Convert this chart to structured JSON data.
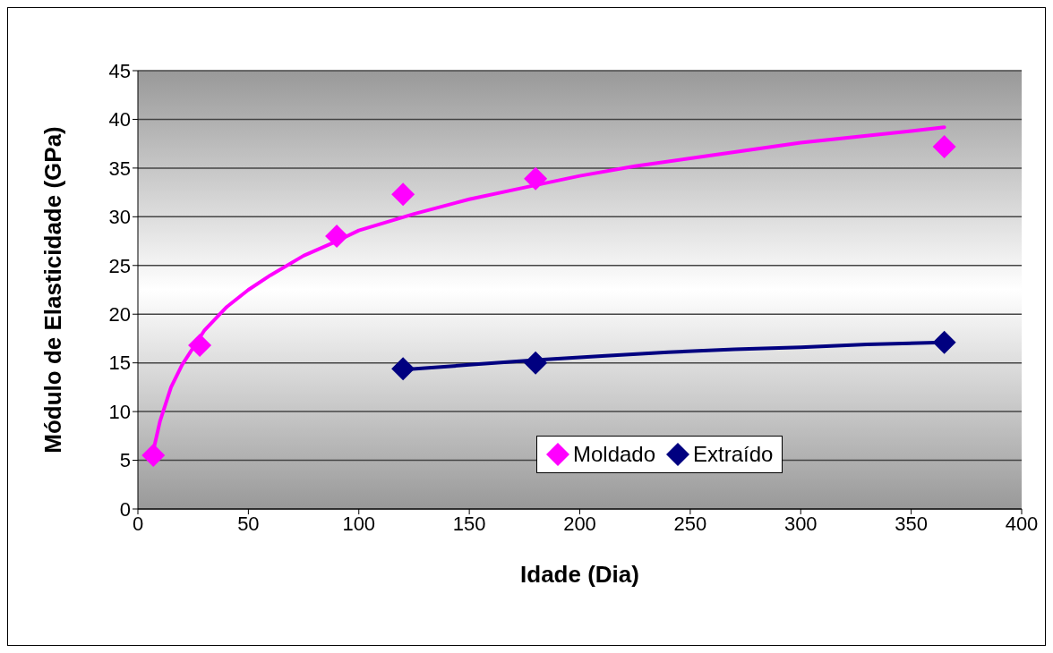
{
  "chart_data": {
    "type": "scatter",
    "xlabel": "Idade (Dia)",
    "ylabel": "Módulo de Elasticidade (GPa)",
    "xlim": [
      0,
      400
    ],
    "xticks": [
      0,
      50,
      100,
      150,
      200,
      250,
      300,
      350,
      400
    ],
    "ylim": [
      0,
      45
    ],
    "yticks": [
      0,
      5,
      10,
      15,
      20,
      25,
      30,
      35,
      40,
      45
    ],
    "grid": "y",
    "legend": "bottom right",
    "marker": "diamond",
    "series": [
      {
        "name": "Moldado",
        "color": "#ff00ff",
        "x": [
          7,
          28,
          90,
          120,
          180,
          365
        ],
        "values": [
          5.5,
          16.8,
          28,
          32.3,
          33.9,
          37.2
        ]
      },
      {
        "name": "Extraído",
        "color": "#000080",
        "x": [
          120,
          180,
          365
        ],
        "values": [
          14.4,
          15,
          17.1
        ]
      },
      {
        "type": "line",
        "color": "#ff00ff",
        "marker": "none",
        "x": [
          7,
          10,
          15,
          20,
          30,
          40,
          50,
          60,
          75,
          90,
          100,
          125,
          150,
          175,
          200,
          225,
          250,
          275,
          300,
          325,
          350,
          365
        ],
        "values": [
          6,
          9,
          12.5,
          14.8,
          18.3,
          20.7,
          22.5,
          24,
          26,
          27.5,
          28.6,
          30.3,
          31.8,
          33,
          34.2,
          35.2,
          36,
          36.8,
          37.6,
          38.2,
          38.8,
          39.2
        ]
      },
      {
        "type": "line",
        "color": "#000080",
        "marker": "none",
        "x": [
          120,
          150,
          180,
          210,
          240,
          270,
          300,
          330,
          365
        ],
        "values": [
          14.3,
          14.8,
          15.3,
          15.7,
          16.1,
          16.4,
          16.6,
          16.9,
          17.1
        ]
      }
    ]
  }
}
